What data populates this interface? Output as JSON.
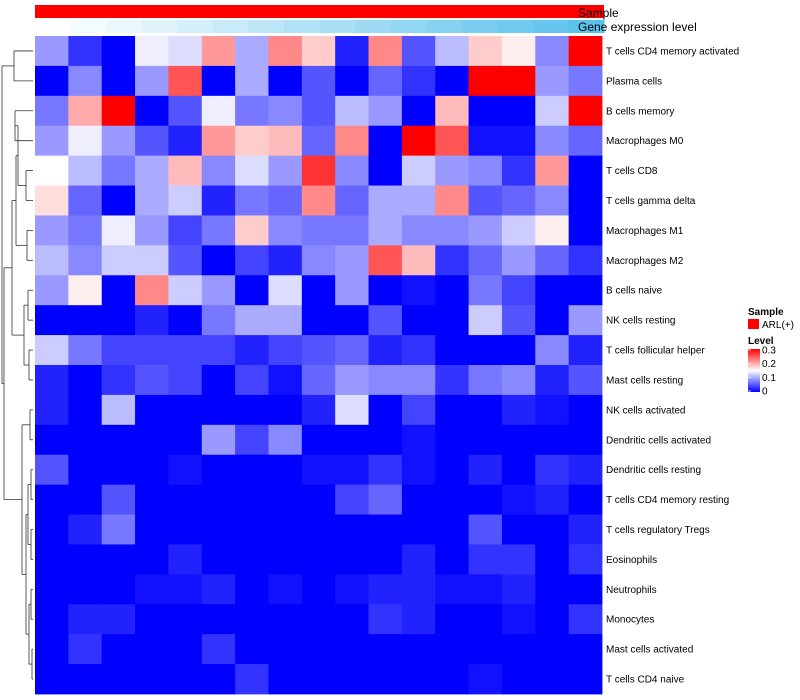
{
  "chart_data": {
    "type": "heatmap",
    "annotation_rows": [
      "Sample",
      "Gene expression level"
    ],
    "legend": {
      "sample_title": "Sample",
      "sample_entries": [
        {
          "label": "ARL(+)",
          "color": "#ff0000"
        }
      ],
      "level_title": "Level",
      "level_ticks": [
        "0.3",
        "0.2",
        "0.1",
        "0"
      ],
      "level_range": [
        0,
        0.3
      ]
    },
    "colors": {
      "sample": "#ff0000",
      "low": "#0000ff",
      "mid": "#ffffff",
      "high": "#ff0000",
      "gene_expression_low": "#ffffff",
      "gene_expression_high": "#5bc2ec"
    },
    "gene_expression_levels": [
      0.0,
      0.07,
      0.13,
      0.2,
      0.27,
      0.33,
      0.4,
      0.47,
      0.53,
      0.6,
      0.67,
      0.73,
      0.8,
      0.87,
      0.93,
      1.0
    ],
    "rows": [
      "T cells CD4 memory activated",
      "Plasma cells",
      "B cells memory",
      "Macrophages M0",
      "T cells CD8",
      "T cells gamma delta",
      "Macrophages M1",
      "Macrophages M2",
      "B cells naive",
      "NK cells resting",
      "T cells follicular helper",
      "Mast cells resting",
      "NK cells activated",
      "Dendritic cells activated",
      "Dendritic cells resting",
      "T cells CD4 memory resting",
      "T cells regulatory  Tregs",
      "Eosinophils",
      "Neutrophils",
      "Monocytes",
      "Mast cells activated",
      "T cells CD4 naive"
    ],
    "values": [
      [
        0.09,
        0.03,
        0.0,
        0.14,
        0.13,
        0.21,
        0.1,
        0.22,
        0.18,
        0.02,
        0.22,
        0.05,
        0.11,
        0.18,
        0.16,
        0.08,
        0.3
      ],
      [
        0.0,
        0.08,
        0.0,
        0.09,
        0.25,
        0.0,
        0.1,
        0.0,
        0.05,
        0.0,
        0.06,
        0.03,
        0.0,
        0.3,
        0.3,
        0.09,
        0.07
      ],
      [
        0.07,
        0.2,
        0.3,
        0.0,
        0.05,
        0.14,
        0.07,
        0.08,
        0.05,
        0.11,
        0.09,
        0.0,
        0.19,
        0.0,
        0.0,
        0.12,
        0.3
      ],
      [
        0.09,
        0.14,
        0.09,
        0.05,
        0.02,
        0.21,
        0.18,
        0.19,
        0.06,
        0.22,
        0.0,
        0.3,
        0.25,
        0.01,
        0.01,
        0.08,
        0.06
      ],
      [
        0.15,
        0.11,
        0.07,
        0.1,
        0.19,
        0.08,
        0.13,
        0.09,
        0.27,
        0.08,
        0.0,
        0.12,
        0.09,
        0.08,
        0.03,
        0.21,
        0.0
      ],
      [
        0.17,
        0.06,
        0.0,
        0.1,
        0.12,
        0.02,
        0.07,
        0.06,
        0.22,
        0.06,
        0.1,
        0.1,
        0.22,
        0.05,
        0.06,
        0.08,
        0.0
      ],
      [
        0.09,
        0.07,
        0.14,
        0.09,
        0.04,
        0.07,
        0.18,
        0.08,
        0.07,
        0.07,
        0.1,
        0.08,
        0.08,
        0.09,
        0.12,
        0.16,
        0.0
      ],
      [
        0.11,
        0.08,
        0.12,
        0.12,
        0.05,
        0.0,
        0.04,
        0.02,
        0.08,
        0.09,
        0.25,
        0.19,
        0.03,
        0.06,
        0.09,
        0.06,
        0.03
      ],
      [
        0.09,
        0.16,
        0.0,
        0.22,
        0.12,
        0.09,
        0.0,
        0.13,
        0.0,
        0.09,
        0.0,
        0.01,
        0.0,
        0.07,
        0.04,
        0.0,
        0.0
      ],
      [
        0.0,
        0.0,
        0.0,
        0.02,
        0.0,
        0.07,
        0.1,
        0.1,
        0.0,
        0.0,
        0.05,
        0.0,
        0.0,
        0.12,
        0.05,
        0.0,
        0.09
      ],
      [
        0.12,
        0.07,
        0.04,
        0.04,
        0.04,
        0.04,
        0.02,
        0.04,
        0.05,
        0.06,
        0.02,
        0.03,
        0.0,
        0.0,
        0.0,
        0.08,
        0.02
      ],
      [
        0.02,
        0.0,
        0.03,
        0.05,
        0.04,
        0.0,
        0.04,
        0.01,
        0.06,
        0.09,
        0.08,
        0.08,
        0.03,
        0.07,
        0.08,
        0.02,
        0.05
      ],
      [
        0.02,
        0.0,
        0.11,
        0.0,
        0.0,
        0.0,
        0.0,
        0.0,
        0.02,
        0.13,
        0.0,
        0.04,
        0.0,
        0.0,
        0.02,
        0.01,
        0.0
      ],
      [
        0.0,
        0.0,
        0.0,
        0.0,
        0.0,
        0.09,
        0.04,
        0.08,
        0.0,
        0.0,
        0.0,
        0.01,
        0.0,
        0.0,
        0.0,
        0.0,
        0.0
      ],
      [
        0.05,
        0.0,
        0.0,
        0.0,
        0.01,
        0.0,
        0.0,
        0.0,
        0.01,
        0.01,
        0.03,
        0.01,
        0.0,
        0.02,
        0.0,
        0.03,
        0.02
      ],
      [
        0.0,
        0.0,
        0.05,
        0.0,
        0.0,
        0.0,
        0.0,
        0.0,
        0.0,
        0.04,
        0.06,
        0.0,
        0.0,
        0.0,
        0.01,
        0.02,
        0.0
      ],
      [
        0.0,
        0.02,
        0.07,
        0.0,
        0.0,
        0.0,
        0.0,
        0.0,
        0.0,
        0.0,
        0.0,
        0.0,
        0.0,
        0.05,
        0.0,
        0.0,
        0.02
      ],
      [
        0.0,
        0.0,
        0.0,
        0.0,
        0.02,
        0.0,
        0.0,
        0.0,
        0.0,
        0.0,
        0.0,
        0.02,
        0.0,
        0.03,
        0.03,
        0.0,
        0.03
      ],
      [
        0.0,
        0.0,
        0.0,
        0.01,
        0.01,
        0.02,
        0.0,
        0.01,
        0.0,
        0.01,
        0.02,
        0.02,
        0.01,
        0.01,
        0.02,
        0.0,
        0.0
      ],
      [
        0.0,
        0.02,
        0.02,
        0.0,
        0.0,
        0.0,
        0.0,
        0.0,
        0.0,
        0.0,
        0.03,
        0.02,
        0.0,
        0.0,
        0.01,
        0.0,
        0.03
      ],
      [
        0.0,
        0.03,
        0.0,
        0.0,
        0.0,
        0.03,
        0.0,
        0.0,
        0.0,
        0.0,
        0.0,
        0.0,
        0.0,
        0.0,
        0.0,
        0.0,
        0.0
      ],
      [
        0.0,
        0.0,
        0.0,
        0.0,
        0.0,
        0.0,
        0.03,
        0.0,
        0.0,
        0.0,
        0.0,
        0.0,
        0.0,
        0.01,
        0.0,
        0.0,
        0.0
      ]
    ]
  }
}
